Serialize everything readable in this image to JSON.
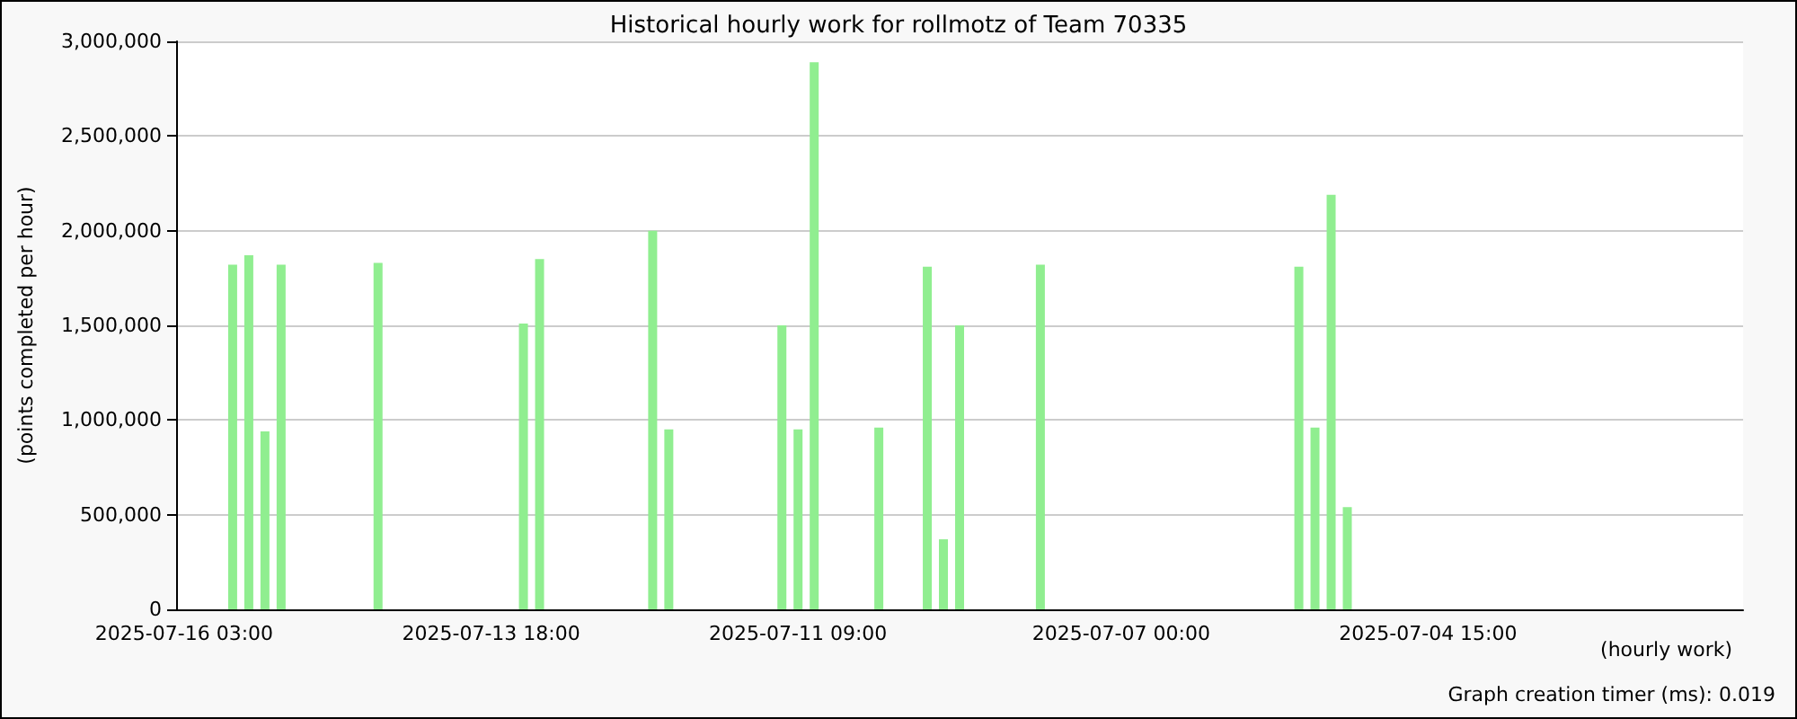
{
  "chart_data": {
    "type": "bar",
    "title": "Historical hourly work for rollmotz of Team 70335",
    "xlabel": "(hourly work)",
    "ylabel": "(points completed per hour)",
    "annotations": [
      "Graph creation timer (ms): 0.019"
    ],
    "categories": [
      "2025-07-16 03:00",
      null,
      null,
      null,
      null,
      null,
      null,
      null,
      null,
      null,
      null,
      null,
      null,
      null,
      null,
      null,
      null,
      null,
      null,
      "2025-07-13 18:00",
      null,
      null,
      null,
      null,
      null,
      null,
      null,
      null,
      null,
      null,
      null,
      null,
      null,
      null,
      null,
      null,
      null,
      null,
      "2025-07-11 09:00",
      null,
      null,
      null,
      null,
      null,
      null,
      null,
      null,
      null,
      null,
      null,
      null,
      null,
      null,
      null,
      null,
      null,
      null,
      null,
      "2025-07-07 00:00",
      null,
      null,
      null,
      null,
      null,
      null,
      null,
      null,
      null,
      null,
      null,
      null,
      null,
      null,
      null,
      null,
      null,
      null,
      "2025-07-04 15:00",
      null,
      null,
      null,
      null,
      null,
      null,
      null,
      null,
      null,
      null,
      null,
      null,
      null,
      null,
      null,
      null,
      null,
      null,
      null
    ],
    "values": [
      null,
      null,
      null,
      1820000,
      1870000,
      940000,
      1820000,
      null,
      null,
      null,
      null,
      null,
      1830000,
      null,
      null,
      null,
      null,
      null,
      null,
      null,
      null,
      1510000,
      1850000,
      null,
      null,
      null,
      null,
      null,
      null,
      2000000,
      950000,
      null,
      null,
      null,
      null,
      null,
      null,
      1500000,
      950000,
      2890000,
      null,
      null,
      null,
      960000,
      null,
      null,
      1810000,
      370000,
      1500000,
      null,
      null,
      null,
      null,
      1820000,
      null,
      null,
      null,
      null,
      null,
      null,
      null,
      null,
      null,
      null,
      null,
      null,
      null,
      null,
      null,
      1810000,
      960000,
      2190000,
      540000,
      null,
      null,
      null,
      null,
      null,
      null,
      null,
      null,
      null,
      null,
      null,
      null,
      null,
      null,
      null,
      null,
      null,
      null,
      null,
      null,
      null,
      null,
      null,
      null
    ],
    "color": "#90ee90",
    "ylim": [
      0,
      3000000
    ],
    "yticks": [
      0,
      {
        "value": 500000,
        "label": "500,000"
      },
      {
        "value": 1000000,
        "label": "1,000,000"
      },
      {
        "value": 1500000,
        "label": "1,500,000"
      },
      {
        "value": 2000000,
        "label": "2,000,000"
      },
      {
        "value": 2500000,
        "label": "2,500,000"
      },
      {
        "value": 3000000,
        "label": "3,000,000"
      }
    ],
    "grid": "y"
  }
}
